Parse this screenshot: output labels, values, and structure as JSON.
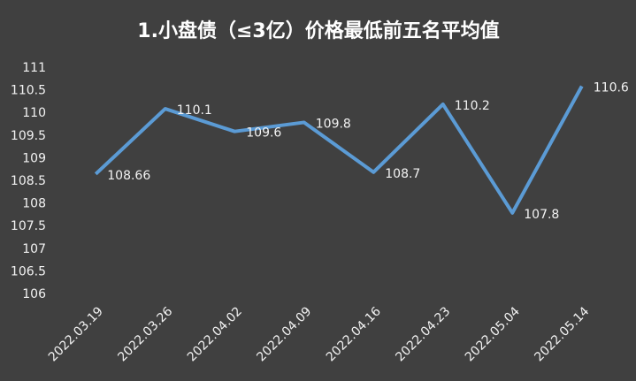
{
  "chart_data": {
    "type": "line",
    "title": "1.小盘债（≤3亿）价格最低前五名平均值",
    "categories": [
      "2022.03.19",
      "2022.03.26",
      "2022.04.02",
      "2022.04.09",
      "2022.04.16",
      "2022.04.23",
      "2022.05.04",
      "2022.05.14"
    ],
    "values": [
      108.66,
      110.1,
      109.6,
      109.8,
      108.7,
      110.2,
      107.8,
      110.6
    ],
    "color": "#5b9bd5",
    "ylim": [
      106,
      111
    ],
    "yticks": [
      106,
      106.5,
      107,
      107.5,
      108,
      108.5,
      109,
      109.5,
      110,
      110.5,
      111
    ]
  }
}
